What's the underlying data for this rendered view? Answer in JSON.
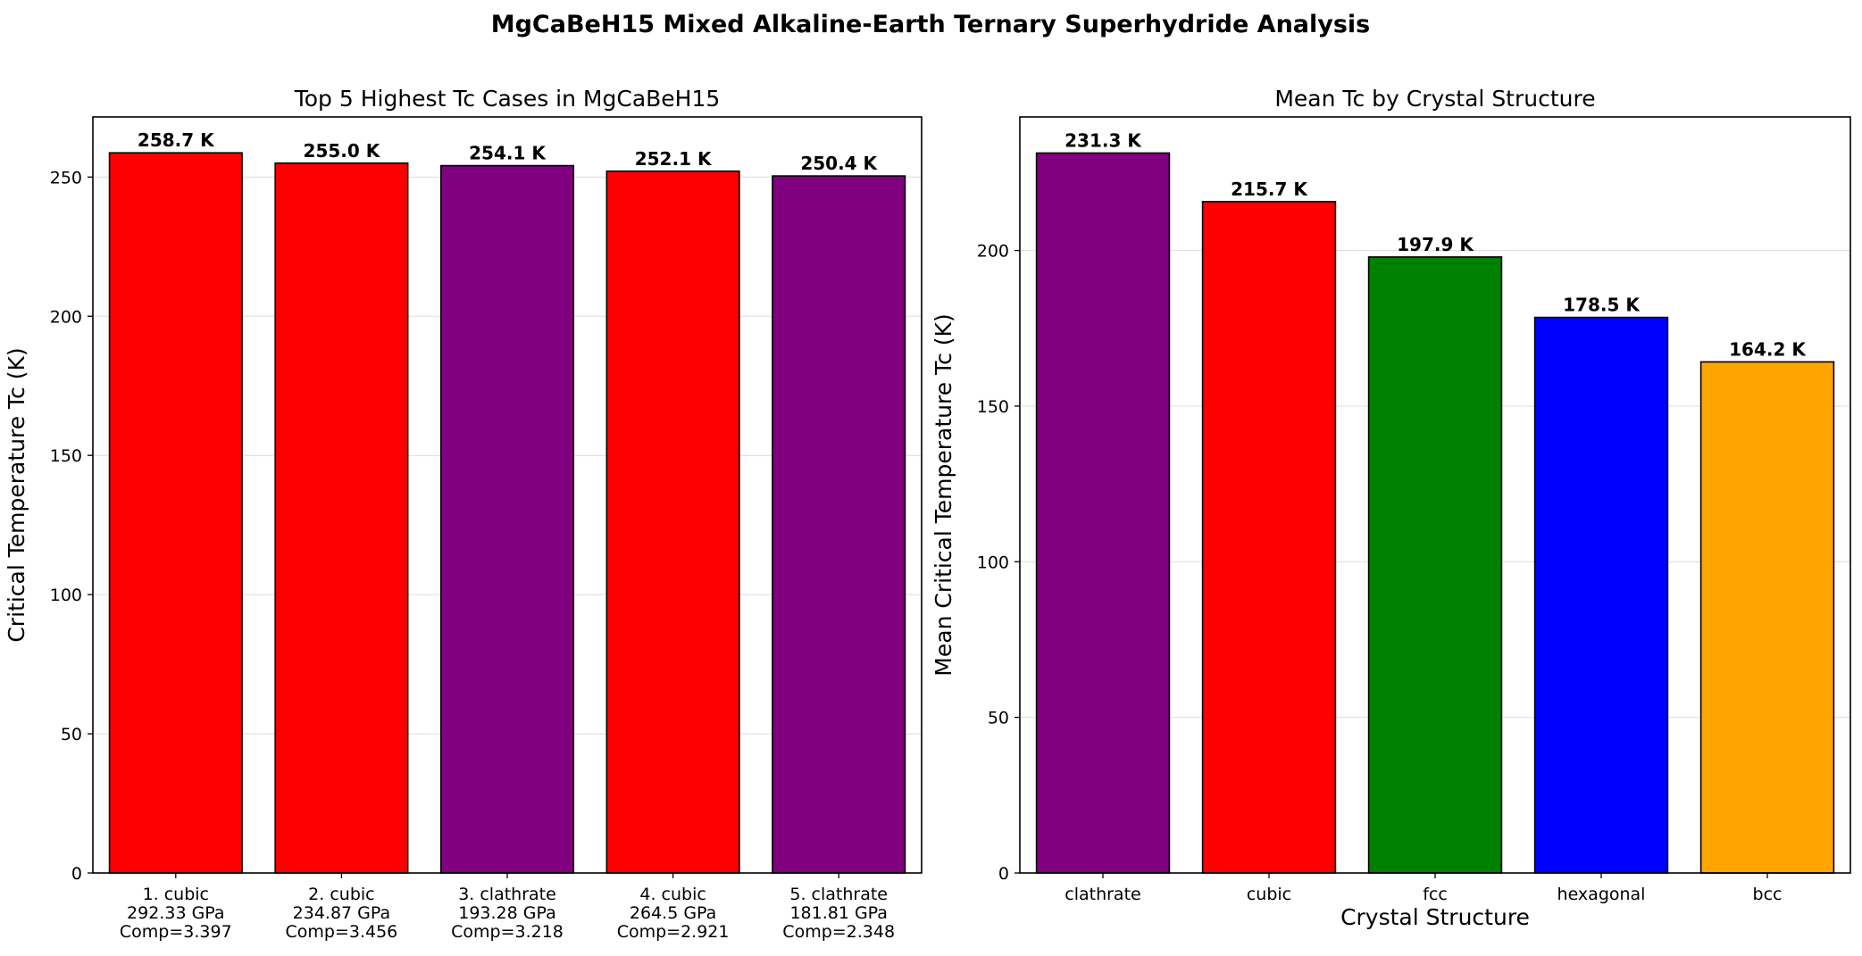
{
  "title": "MgCaBeH15 Mixed Alkaline-Earth Ternary Superhydride Analysis",
  "colors": {
    "cubic": "#ff0000",
    "clathrate": "#800080",
    "fcc": "#008000",
    "hexagonal": "#0000ff",
    "bcc": "#ffa500"
  },
  "chart_data": [
    {
      "type": "bar",
      "title": "Top 5 Highest Tc Cases in MgCaBeH15",
      "xlabel": "",
      "ylabel": "Critical Temperature Tc (K)",
      "ylim": [
        0,
        271.6
      ],
      "yticks": [
        0,
        50,
        100,
        150,
        200,
        250
      ],
      "grid": "y",
      "categories": [
        [
          "1. cubic",
          "292.33 GPa",
          "Comp=3.397"
        ],
        [
          "2. cubic",
          "234.87 GPa",
          "Comp=3.456"
        ],
        [
          "3. clathrate",
          "193.28 GPa",
          "Comp=3.218"
        ],
        [
          "4. cubic",
          "264.5 GPa",
          "Comp=2.921"
        ],
        [
          "5. clathrate",
          "181.81 GPa",
          "Comp=2.348"
        ]
      ],
      "structures": [
        "cubic",
        "cubic",
        "clathrate",
        "cubic",
        "clathrate"
      ],
      "values": [
        258.7,
        255.0,
        254.1,
        252.1,
        250.4
      ],
      "data_labels": [
        "258.7 K",
        "255.0 K",
        "254.1 K",
        "252.1 K",
        "250.4 K"
      ]
    },
    {
      "type": "bar",
      "title": "Mean Tc by Crystal Structure",
      "xlabel": "Crystal Structure",
      "ylabel": "Mean Critical Temperature Tc (K)",
      "ylim": [
        0,
        242.9
      ],
      "yticks": [
        0,
        50,
        100,
        150,
        200
      ],
      "grid": "y",
      "categories": [
        [
          "clathrate"
        ],
        [
          "cubic"
        ],
        [
          "fcc"
        ],
        [
          "hexagonal"
        ],
        [
          "bcc"
        ]
      ],
      "structures": [
        "clathrate",
        "cubic",
        "fcc",
        "hexagonal",
        "bcc"
      ],
      "values": [
        231.3,
        215.7,
        197.9,
        178.5,
        164.2
      ],
      "data_labels": [
        "231.3 K",
        "215.7 K",
        "197.9 K",
        "178.5 K",
        "164.2 K"
      ]
    }
  ]
}
